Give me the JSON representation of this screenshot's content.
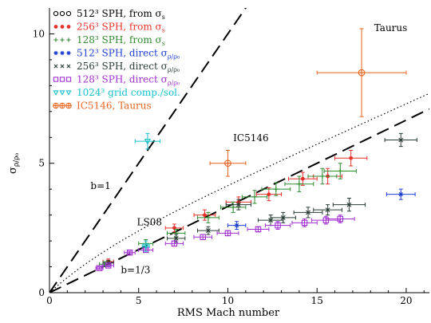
{
  "chart_data": {
    "type": "scatter",
    "xlabel": "RMS Mach number",
    "ylabel": "σ",
    "ylabel_sub": "ρ/ρ₀",
    "xlim": [
      0,
      21.3
    ],
    "ylim": [
      0,
      11
    ],
    "x_ticks": [
      0,
      5,
      10,
      15,
      20
    ],
    "y_ticks": [
      0,
      5,
      10
    ],
    "legend_position": "top-left",
    "series": [
      {
        "name_main": "512³ SPH, from σ",
        "name_sub": "s",
        "color": "#000000",
        "marker": "circle",
        "points": []
      },
      {
        "name_main": "256³ SPH, from σ",
        "name_sub": "s",
        "color": "#e8312b",
        "marker": "dot",
        "points": [
          {
            "x": 3.3,
            "y": 1.2,
            "xe": 0.3,
            "ye": 0.1
          },
          {
            "x": 7.0,
            "y": 2.5,
            "xe": 0.5,
            "ye": 0.15
          },
          {
            "x": 8.7,
            "y": 3.0,
            "xe": 0.6,
            "ye": 0.2
          },
          {
            "x": 10.6,
            "y": 3.5,
            "xe": 0.7,
            "ye": 0.2
          },
          {
            "x": 12.3,
            "y": 3.8,
            "xe": 0.7,
            "ye": 0.25
          },
          {
            "x": 14.2,
            "y": 4.4,
            "xe": 0.8,
            "ye": 0.25
          },
          {
            "x": 15.6,
            "y": 4.5,
            "xe": 0.8,
            "ye": 0.3
          },
          {
            "x": 16.9,
            "y": 5.2,
            "xe": 0.9,
            "ye": 0.3
          }
        ]
      },
      {
        "name_main": "128³ SPH, from σ",
        "name_sub": "s",
        "color": "#2e8b2e",
        "marker": "plus",
        "points": [
          {
            "x": 3.1,
            "y": 1.1,
            "xe": 0.3,
            "ye": 0.1
          },
          {
            "x": 5.4,
            "y": 1.9,
            "xe": 0.4,
            "ye": 0.15
          },
          {
            "x": 7.1,
            "y": 2.3,
            "xe": 0.5,
            "ye": 0.15
          },
          {
            "x": 8.9,
            "y": 2.9,
            "xe": 0.6,
            "ye": 0.2
          },
          {
            "x": 10.3,
            "y": 3.3,
            "xe": 0.7,
            "ye": 0.2
          },
          {
            "x": 11.5,
            "y": 3.7,
            "xe": 0.7,
            "ye": 0.25
          },
          {
            "x": 12.7,
            "y": 4.0,
            "xe": 0.8,
            "ye": 0.25
          },
          {
            "x": 14.0,
            "y": 4.2,
            "xe": 0.8,
            "ye": 0.3
          },
          {
            "x": 15.3,
            "y": 4.5,
            "xe": 0.8,
            "ye": 0.3
          },
          {
            "x": 16.3,
            "y": 4.7,
            "xe": 0.9,
            "ye": 0.3
          }
        ]
      },
      {
        "name_main": "512³ SPH, direct σ",
        "name_sub": "ρ/ρ₀",
        "color": "#1f3fd6",
        "marker": "asterisk",
        "points": [
          {
            "x": 10.5,
            "y": 2.6,
            "xe": 0.5,
            "ye": 0.15
          },
          {
            "x": 19.7,
            "y": 3.8,
            "xe": 0.8,
            "ye": 0.2
          }
        ]
      },
      {
        "name_main": "256³ SPH, direct σ",
        "name_sub": "ρ/ρ₀",
        "color": "#2a3d35",
        "marker": "x",
        "points": [
          {
            "x": 3.3,
            "y": 1.15,
            "xe": 0.3,
            "ye": 0.1
          },
          {
            "x": 7.1,
            "y": 2.1,
            "xe": 0.5,
            "ye": 0.15
          },
          {
            "x": 8.9,
            "y": 2.4,
            "xe": 0.6,
            "ye": 0.15
          },
          {
            "x": 10.6,
            "y": 3.4,
            "xe": 0.7,
            "ye": 0.2
          },
          {
            "x": 12.4,
            "y": 2.8,
            "xe": 0.7,
            "ye": 0.2
          },
          {
            "x": 13.1,
            "y": 2.9,
            "xe": 0.7,
            "ye": 0.2
          },
          {
            "x": 14.5,
            "y": 3.1,
            "xe": 0.8,
            "ye": 0.2
          },
          {
            "x": 15.6,
            "y": 3.2,
            "xe": 0.8,
            "ye": 0.2
          },
          {
            "x": 16.8,
            "y": 3.4,
            "xe": 0.9,
            "ye": 0.25
          },
          {
            "x": 19.7,
            "y": 5.9,
            "xe": 0.9,
            "ye": 0.25
          }
        ]
      },
      {
        "name_main": "128³ SPH, direct σ",
        "name_sub": "ρ/ρ₀",
        "color": "#a12fd2",
        "marker": "square",
        "points": [
          {
            "x": 2.8,
            "y": 0.95,
            "xe": 0.2,
            "ye": 0.05
          },
          {
            "x": 3.3,
            "y": 1.05,
            "xe": 0.3,
            "ye": 0.05
          },
          {
            "x": 4.5,
            "y": 1.55,
            "xe": 0.3,
            "ye": 0.05
          },
          {
            "x": 5.4,
            "y": 1.65,
            "xe": 0.4,
            "ye": 0.05
          },
          {
            "x": 7.0,
            "y": 1.9,
            "xe": 0.5,
            "ye": 0.1
          },
          {
            "x": 8.6,
            "y": 2.15,
            "xe": 0.5,
            "ye": 0.1
          },
          {
            "x": 10.0,
            "y": 2.3,
            "xe": 0.6,
            "ye": 0.1
          },
          {
            "x": 11.7,
            "y": 2.45,
            "xe": 0.6,
            "ye": 0.1
          },
          {
            "x": 12.8,
            "y": 2.6,
            "xe": 0.7,
            "ye": 0.15
          },
          {
            "x": 14.3,
            "y": 2.7,
            "xe": 0.7,
            "ye": 0.15
          },
          {
            "x": 15.5,
            "y": 2.8,
            "xe": 0.8,
            "ye": 0.15
          },
          {
            "x": 16.3,
            "y": 2.85,
            "xe": 0.8,
            "ye": 0.15
          }
        ]
      },
      {
        "name_main": "1024³ grid comp./sol.",
        "name_sub": "",
        "color": "#17c1cc",
        "marker": "triangle-down",
        "points": [
          {
            "x": 5.4,
            "y": 1.8,
            "xe": 0.2,
            "ye": 0.2
          },
          {
            "x": 5.5,
            "y": 5.85,
            "xe": 0.7,
            "ye": 0.3
          }
        ]
      },
      {
        "name_main": "IC5146, Taurus",
        "name_sub": "",
        "color": "#e86420",
        "marker": "circle-plus",
        "points": [
          {
            "x": 10.0,
            "y": 5.0,
            "xe": 1.0,
            "ye": 0.5
          },
          {
            "x": 17.5,
            "y": 8.5,
            "xe": 2.5,
            "ye": 1.7
          }
        ]
      }
    ],
    "model_lines": [
      {
        "label": "b=1",
        "b": 1,
        "style": "long-dash"
      },
      {
        "label": "b=1/3",
        "b": 0.3333,
        "style": "long-dash"
      },
      {
        "label": "LS08",
        "style": "dotted"
      }
    ],
    "annotations": [
      {
        "text": "Taurus",
        "x": 18.2,
        "y": 10.1
      },
      {
        "text": "IC5146",
        "x": 10.3,
        "y": 5.85
      },
      {
        "text": "b=1",
        "x": 2.3,
        "y": 4.0
      },
      {
        "text": "LS08",
        "x": 4.9,
        "y": 2.6
      },
      {
        "text": "b=1/3",
        "x": 4.0,
        "y": 0.75
      }
    ]
  }
}
